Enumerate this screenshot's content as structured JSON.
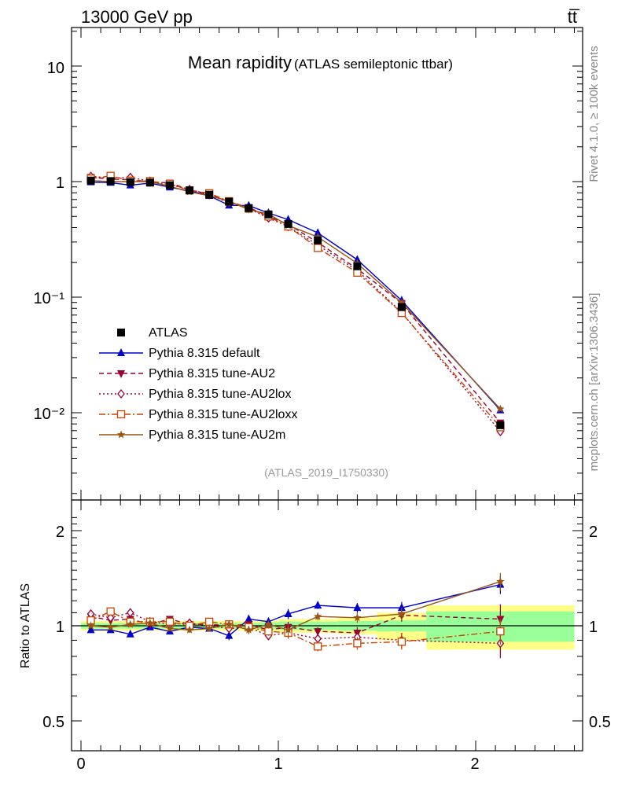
{
  "header": {
    "left": "13000 GeV pp",
    "right": "tt̅"
  },
  "side_text": {
    "rivet": "Rivet 4.1.0, ≥ 100k events",
    "mcplots": "mcplots.cern.ch [arXiv:1306.3436]"
  },
  "chart_data": {
    "type": "line",
    "title": "Mean rapidity",
    "subtitle": "(ATLAS semileptonic ttbar)",
    "analysis_tag": "(ATLAS_2019_I1750330)",
    "xlabel": "",
    "ylabel": "",
    "ratio_ylabel": "Ratio to ATLAS",
    "xlim": [
      -0.05,
      2.55
    ],
    "ylim_log": [
      0.0013,
      20
    ],
    "ratio_ylim": [
      0.4,
      2.4
    ],
    "x_ticks": [
      "0",
      "1",
      "2"
    ],
    "y_ticks_main": [
      "10",
      "1",
      "10⁻¹",
      "10⁻²"
    ],
    "y_ticks_ratio": [
      "2",
      "1",
      "0.5"
    ],
    "bins": [
      [
        0,
        0.1
      ],
      [
        0.1,
        0.2
      ],
      [
        0.2,
        0.3
      ],
      [
        0.3,
        0.4
      ],
      [
        0.4,
        0.5
      ],
      [
        0.5,
        0.6
      ],
      [
        0.6,
        0.7
      ],
      [
        0.7,
        0.8
      ],
      [
        0.8,
        0.9
      ],
      [
        0.9,
        1.0
      ],
      [
        1.0,
        1.1
      ],
      [
        1.1,
        1.3
      ],
      [
        1.3,
        1.5
      ],
      [
        1.5,
        1.75
      ],
      [
        1.75,
        2.5
      ]
    ],
    "x": [
      0.05,
      0.15,
      0.25,
      0.35,
      0.45,
      0.55,
      0.65,
      0.75,
      0.85,
      0.95,
      1.05,
      1.2,
      1.4,
      1.625,
      2.125
    ],
    "data": {
      "name": "ATLAS",
      "values": [
        1.02,
        1.01,
        0.99,
        0.98,
        0.93,
        0.84,
        0.77,
        0.67,
        0.59,
        0.52,
        0.43,
        0.31,
        0.185,
        0.082,
        0.0078
      ],
      "stat_band": [
        0.02,
        0.02,
        0.02,
        0.02,
        0.02,
        0.02,
        0.02,
        0.02,
        0.02,
        0.025,
        0.03,
        0.03,
        0.035,
        0.04,
        0.11
      ],
      "total_band": [
        0.035,
        0.035,
        0.035,
        0.035,
        0.035,
        0.035,
        0.035,
        0.035,
        0.035,
        0.04,
        0.05,
        0.05,
        0.06,
        0.1,
        0.16
      ]
    },
    "series": [
      {
        "name": "Pythia 8.315 default",
        "color": "#0000cc",
        "marker": "triangle-up",
        "dash": "",
        "ratio": [
          0.97,
          0.97,
          0.94,
          0.99,
          0.96,
          0.99,
          0.98,
          0.93,
          1.05,
          1.03,
          1.09,
          1.16,
          1.14,
          1.14,
          1.35
        ],
        "ratio_err": [
          0.02,
          0.02,
          0.02,
          0.02,
          0.02,
          0.02,
          0.02,
          0.03,
          0.03,
          0.03,
          0.04,
          0.03,
          0.04,
          0.05,
          0.09
        ]
      },
      {
        "name": "Pythia 8.315 tune-AU2",
        "color": "#990033",
        "marker": "triangle-down",
        "dash": "6,4",
        "ratio": [
          1.07,
          1.04,
          1.05,
          1.01,
          1.05,
          1.01,
          1.01,
          1.0,
          1.01,
          0.97,
          0.99,
          0.96,
          0.95,
          1.08,
          1.05
        ],
        "ratio_err": [
          0.02,
          0.02,
          0.02,
          0.02,
          0.02,
          0.02,
          0.02,
          0.03,
          0.03,
          0.03,
          0.04,
          0.03,
          0.04,
          0.05,
          0.12
        ]
      },
      {
        "name": "Pythia 8.315 tune-AU2lox",
        "color": "#990033",
        "marker": "diamond",
        "dash": "2,3",
        "ratio": [
          1.09,
          1.06,
          1.1,
          1.03,
          1.01,
          1.02,
          1.0,
          0.98,
          0.99,
          0.93,
          0.95,
          0.91,
          0.92,
          0.9,
          0.88
        ],
        "ratio_err": [
          0.02,
          0.02,
          0.02,
          0.02,
          0.02,
          0.02,
          0.02,
          0.03,
          0.03,
          0.03,
          0.04,
          0.03,
          0.04,
          0.05,
          0.09
        ]
      },
      {
        "name": "Pythia 8.315 tune-AU2loxx",
        "color": "#cc4400",
        "marker": "square-open",
        "dash": "8,3,2,3",
        "ratio": [
          1.04,
          1.11,
          1.03,
          1.03,
          1.03,
          1.0,
          1.03,
          1.01,
          0.99,
          0.96,
          0.95,
          0.86,
          0.88,
          0.89,
          0.96
        ],
        "ratio_err": [
          0.02,
          0.02,
          0.02,
          0.02,
          0.02,
          0.02,
          0.02,
          0.03,
          0.03,
          0.03,
          0.04,
          0.03,
          0.04,
          0.05,
          0.09
        ]
      },
      {
        "name": "Pythia 8.315 tune-AU2m",
        "color": "#995511",
        "marker": "star",
        "dash": "",
        "ratio": [
          1.0,
          0.99,
          1.01,
          1.02,
          0.98,
          0.97,
          0.98,
          1.01,
          0.97,
          1.01,
          0.97,
          1.07,
          1.06,
          1.09,
          1.38
        ],
        "ratio_err": [
          0.02,
          0.02,
          0.02,
          0.02,
          0.02,
          0.02,
          0.02,
          0.03,
          0.03,
          0.03,
          0.04,
          0.03,
          0.04,
          0.05,
          0.09
        ]
      }
    ]
  }
}
